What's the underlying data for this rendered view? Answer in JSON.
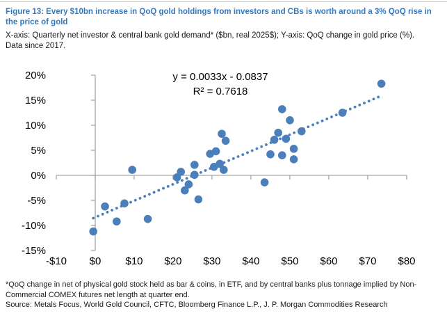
{
  "page": {
    "title": "Figure 13: Every $10bn increase in QoQ gold holdings from investors and CBs is worth around a 3% QoQ rise in the price of gold",
    "subtitle_line1": "X-axis: Quarterly net investor & central bank gold demand* ($bn, real 2025$); Y-axis: QoQ change in gold price (%).",
    "subtitle_line2": "Data since 2017.",
    "footnote_note": "*QoQ change in net of physical gold stock held as bar & coins, in ETF, and by central banks plus tonnage implied by Non-Commercial COMEX futures net length at quarter end.",
    "footnote_source": "Source:  Metals Focus, World Gold Council, CFTC, Bloomberg Finance L.P., J. P. Morgan Commodities Research"
  },
  "colors": {
    "title_blue": "#3579BD",
    "point_blue": "#4A7FBB",
    "trendline_blue": "#4A7FBB",
    "axis_grey": "#a6a6a6",
    "tick_text": "#000000"
  },
  "chart_data": {
    "type": "scatter",
    "title": "Figure 13: Every $10bn increase in QoQ gold holdings from investors and CBs is worth around a 3% QoQ rise in the price of gold",
    "xlabel": "Quarterly net investor & central bank gold demand ($bn, real 2025$)",
    "ylabel": "QoQ change in gold price (%)",
    "xlim": [
      -10,
      80
    ],
    "ylim": [
      -15,
      20
    ],
    "grid": false,
    "legend": "none",
    "x_tick_values": [
      -10,
      0,
      10,
      20,
      30,
      40,
      50,
      60,
      70,
      80
    ],
    "x_tick_labels": [
      "-$10",
      "$0",
      "$10",
      "$20",
      "$30",
      "$40",
      "$50",
      "$60",
      "$70",
      "$80"
    ],
    "y_tick_values": [
      20,
      15,
      10,
      5,
      0,
      -5,
      -10,
      -15
    ],
    "y_tick_labels": [
      "20%",
      "15%",
      "10%",
      "5%",
      "0%",
      "-5%",
      "-10%",
      "-15%"
    ],
    "points_x_bn_y_pct": [
      [
        -0.5,
        -11.2
      ],
      [
        2.5,
        -6.2
      ],
      [
        5.5,
        -9.2
      ],
      [
        7.5,
        -5.6
      ],
      [
        9.5,
        1.1
      ],
      [
        13.5,
        -8.7
      ],
      [
        21,
        -0.4
      ],
      [
        22,
        0.7
      ],
      [
        23,
        -3.0
      ],
      [
        24,
        -1.8
      ],
      [
        25.5,
        2.1
      ],
      [
        25.5,
        0.1
      ],
      [
        26.5,
        -4.8
      ],
      [
        29.5,
        4.3
      ],
      [
        31,
        4.8
      ],
      [
        30.5,
        1.7
      ],
      [
        32,
        2.3
      ],
      [
        33,
        1.1
      ],
      [
        32.5,
        8.3
      ],
      [
        33.5,
        6.9
      ],
      [
        43.5,
        -1.4
      ],
      [
        45,
        4.2
      ],
      [
        46,
        7.1
      ],
      [
        47,
        8.5
      ],
      [
        48,
        4.0
      ],
      [
        48,
        13.2
      ],
      [
        49,
        7.3
      ],
      [
        50,
        11.0
      ],
      [
        51,
        5.3
      ],
      [
        51,
        3.2
      ],
      [
        53,
        8.8
      ],
      [
        63.5,
        12.5
      ],
      [
        73.5,
        18.3
      ]
    ],
    "trendline": {
      "style": "dotted",
      "slope": 0.0033,
      "intercept": -0.0837,
      "x_start": -0.5,
      "x_end": 73.5,
      "r_squared": 0.7618
    },
    "equation_line1": "y = 0.0033x - 0.0837",
    "equation_line2": "R² = 0.7618"
  }
}
